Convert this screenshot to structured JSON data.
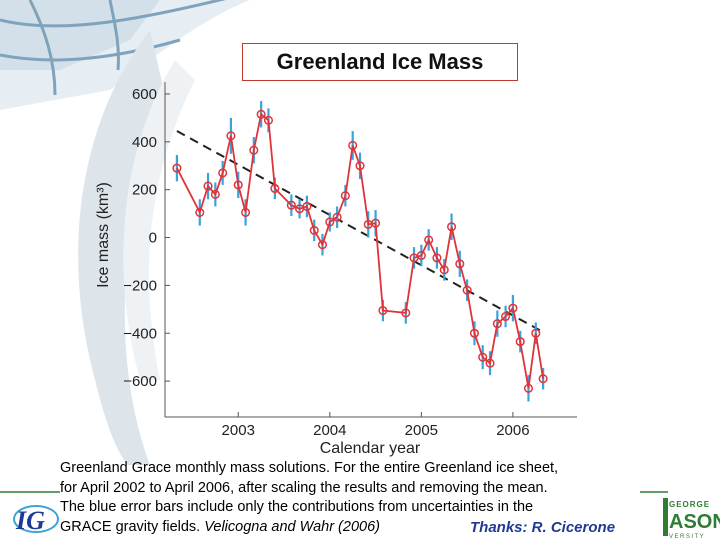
{
  "slide": {
    "title": "Greenland Ice Mass",
    "caption_lines": [
      "Greenland Grace monthly mass solutions. For the entire Greenland ice sheet,",
      "for April 2002 to April 2006, after scaling the results and removing the mean.",
      "The blue error bars include only the contributions from uncertainties in the",
      "GRACE gravity fields."
    ],
    "citation": "Velicogna and Wahr (2006)",
    "thanks": "Thanks: R. Cicerone",
    "logo_right_text": [
      "GEORGE",
      "ASON",
      "VERSITY"
    ],
    "logo_left_text": "IG"
  },
  "colors": {
    "series": "#e0333a",
    "error_bars": "#3aa3d8",
    "trend": "#222222",
    "thanks": "#1f3a93",
    "logo_green": "#2e7d32"
  },
  "chart_data": {
    "type": "line",
    "xlabel": "Calendar year",
    "ylabel": "Ice mass (km³)",
    "xlim": [
      2002.2,
      2006.7
    ],
    "ylim": [
      -750,
      650
    ],
    "x_ticks": [
      2003,
      2004,
      2005,
      2006
    ],
    "x_tick_labels": [
      "2003",
      "2004",
      "2005",
      "2006"
    ],
    "y_ticks": [
      -600,
      -400,
      -200,
      0,
      200,
      400,
      600
    ],
    "y_tick_labels": [
      "−600",
      "−400",
      "−200",
      "0",
      "200",
      "400",
      "600"
    ],
    "grid": false,
    "series": [
      {
        "x": [
          2002.33,
          2002.58,
          2002.67,
          2002.75,
          2002.83,
          2002.92,
          2003.0,
          2003.08,
          2003.17,
          2003.25,
          2003.33,
          2003.4,
          2003.58,
          2003.67,
          2003.75,
          2003.83,
          2003.92,
          2004.0,
          2004.08,
          2004.17,
          2004.25,
          2004.33,
          2004.42,
          2004.5,
          2004.58,
          2004.83,
          2004.92,
          2005.0,
          2005.08,
          2005.17,
          2005.25,
          2005.33,
          2005.42,
          2005.5,
          2005.58,
          2005.67,
          2005.75,
          2005.83,
          2005.92,
          2006.0,
          2006.08,
          2006.17,
          2006.25,
          2006.33
        ],
        "y": [
          290,
          105,
          215,
          180,
          270,
          425,
          220,
          105,
          365,
          515,
          490,
          205,
          135,
          120,
          130,
          30,
          -30,
          65,
          85,
          175,
          385,
          300,
          55,
          60,
          -305,
          -315,
          -85,
          -75,
          -10,
          -85,
          -135,
          45,
          -110,
          -220,
          -400,
          -500,
          -525,
          -360,
          -330,
          -295,
          -435,
          -630,
          -400,
          -590
        ],
        "err": [
          55,
          55,
          55,
          50,
          50,
          75,
          55,
          55,
          55,
          55,
          50,
          45,
          45,
          40,
          45,
          45,
          45,
          40,
          45,
          45,
          60,
          55,
          55,
          55,
          45,
          45,
          45,
          45,
          45,
          45,
          45,
          55,
          55,
          45,
          50,
          50,
          50,
          55,
          45,
          55,
          45,
          55,
          45,
          45
        ]
      }
    ],
    "trend": {
      "x": [
        2002.33,
        2006.33
      ],
      "y": [
        445,
        -395
      ]
    }
  }
}
